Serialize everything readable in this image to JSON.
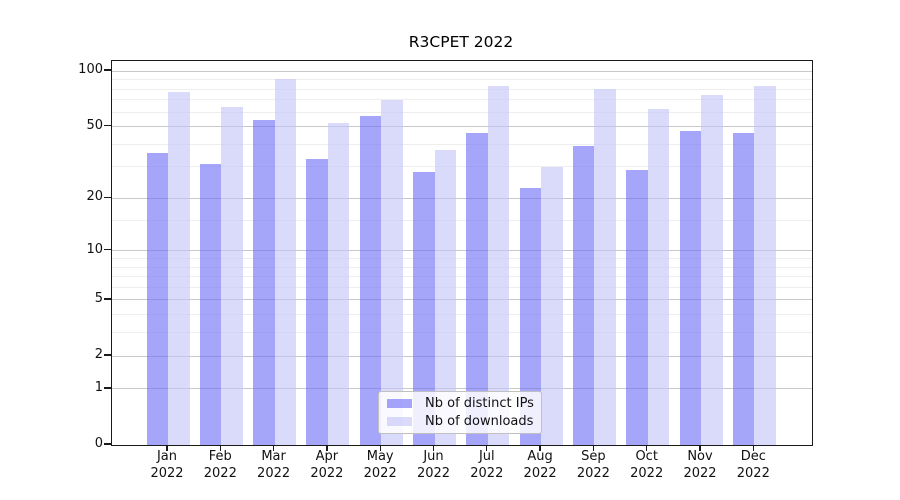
{
  "chart_data": {
    "type": "bar",
    "title": "R3CPET 2022",
    "y_scale": "log1p",
    "grid": "horizontal",
    "legend_position": "lower center",
    "categories": [
      "Jan",
      "Feb",
      "Mar",
      "Apr",
      "May",
      "Jun",
      "Jul",
      "Aug",
      "Sep",
      "Oct",
      "Nov",
      "Dec"
    ],
    "year_label": "2022",
    "series": [
      {
        "name": "Nb of distinct IPs",
        "color": "rgba(110,110,245,0.62)",
        "values": [
          36,
          31,
          54,
          33,
          57,
          28,
          46,
          23,
          39,
          29,
          47,
          46
        ]
      },
      {
        "name": "Nb of downloads",
        "color": "rgba(196,196,248,0.62)",
        "values": [
          77,
          64,
          91,
          52,
          70,
          37,
          83,
          30,
          80,
          62,
          74,
          83
        ]
      }
    ],
    "y_ticks": [
      0,
      1,
      2,
      5,
      10,
      20,
      50,
      100
    ],
    "y_minor_ticks": [
      3,
      4,
      6,
      7,
      8,
      9,
      15,
      30,
      40,
      60,
      70,
      80,
      90
    ],
    "ylim": [
      0,
      114
    ],
    "xlabel": "",
    "ylabel": "",
    "colors": {
      "major_grid": "#c9c9c9",
      "minor_grid": "#eeeeee",
      "spine": "#1a1a1a",
      "background": "#ffffff"
    }
  }
}
